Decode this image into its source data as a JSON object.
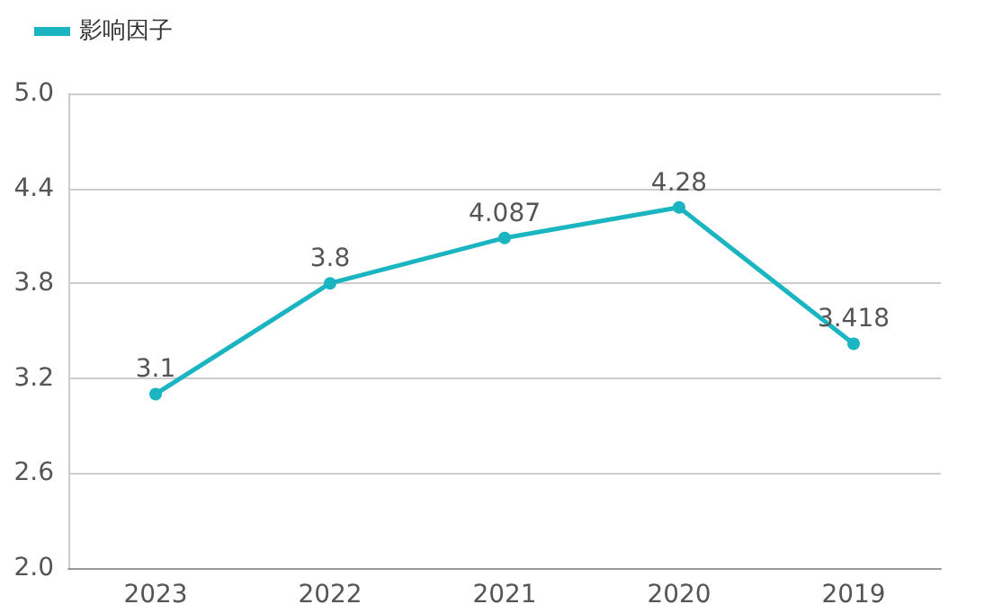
{
  "chart_data": {
    "type": "line",
    "categories": [
      "2023",
      "2022",
      "2021",
      "2020",
      "2019"
    ],
    "series": [
      {
        "name": "影响因子",
        "color": "#1ab5c1",
        "values": [
          3.1,
          3.8,
          4.087,
          4.28,
          3.418
        ]
      }
    ],
    "ylim": [
      2.0,
      5.0
    ],
    "yticks": [
      {
        "value": 2.0,
        "label": "2.0"
      },
      {
        "value": 2.6,
        "label": "2.6"
      },
      {
        "value": 3.2,
        "label": "3.2"
      },
      {
        "value": 3.8,
        "label": "3.8"
      },
      {
        "value": 4.4,
        "label": "4.4"
      },
      {
        "value": 5.0,
        "label": "5.0"
      }
    ],
    "grid": "y",
    "legend": "top left",
    "marker": "circle",
    "line_style": "solid",
    "data_labels": true
  }
}
